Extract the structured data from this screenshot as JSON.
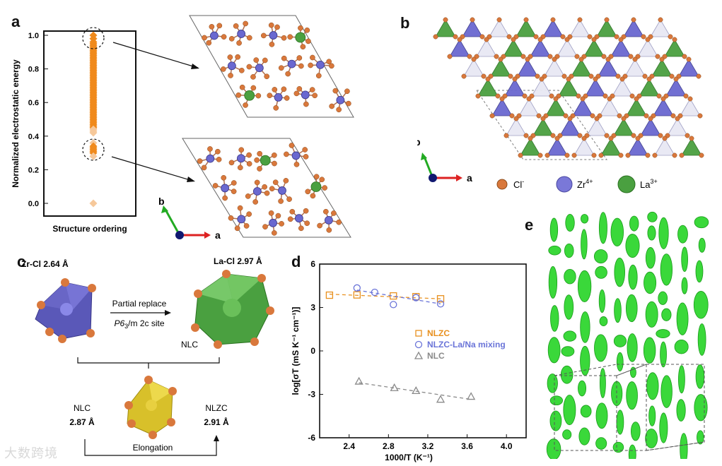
{
  "panels": {
    "a": "a",
    "b": "b",
    "c": "c",
    "d": "d",
    "e": "e"
  },
  "panel_a": {
    "ylabel": "Normalized electrostatic energy",
    "xlabel": "Structure ordering",
    "yticks": [
      "1.0",
      "0.8",
      "0.6",
      "0.4",
      "0.2",
      "0.0"
    ],
    "axis_b": "b",
    "axis_a": "a"
  },
  "panel_b": {
    "axis_b": "b",
    "axis_a": "a",
    "legend": [
      {
        "label": "Cl",
        "sup": "-",
        "color": "#d9783c"
      },
      {
        "label": "Zr",
        "sup": "4+",
        "color": "#7a78d8"
      },
      {
        "label": "La",
        "sup": "3+",
        "color": "#4aa040"
      }
    ]
  },
  "panel_c": {
    "zrcl": "Zr-Cl 2.64 Å",
    "lacl": "La-Cl 2.97 Å",
    "replace_line1": "Partial replace",
    "replace_line2_italic": "P6",
    "replace_line2_sub": "3",
    "replace_line2_rest": "/m 2c site",
    "nlc_tag": "NLC",
    "left_label": "NLC",
    "left_value": "2.87 Å",
    "right_label": "NLZC",
    "right_value": "2.91 Å",
    "bottom": "Elongation"
  },
  "watermark": "大数跨境",
  "chart_data": {
    "type": "scatter",
    "title": "",
    "xlabel": "1000/T (K⁻¹)",
    "ylabel": "log[σT (mS K⁻¹ cm⁻¹)]",
    "xlim": [
      2.1,
      4.2
    ],
    "ylim": [
      -6,
      6
    ],
    "xticks": [
      "2.4",
      "2.8",
      "3.2",
      "3.6",
      "4.0"
    ],
    "yticks": [
      "6",
      "3",
      "0",
      "-3",
      "-6"
    ],
    "legend": [
      "NLZC",
      "NLZC-La/Na mixing",
      "NLC"
    ],
    "series": [
      {
        "name": "NLZC",
        "marker": "square",
        "color": "#e8901e",
        "x": [
          2.2,
          2.48,
          2.85,
          3.08,
          3.33
        ],
        "y": [
          3.85,
          3.87,
          3.8,
          3.75,
          3.6
        ],
        "fit": [
          [
            2.2,
            3.92
          ],
          [
            3.33,
            3.6
          ]
        ]
      },
      {
        "name": "NLZC-La/Na mixing",
        "marker": "circle",
        "color": "#6a74d8",
        "x": [
          2.48,
          2.66,
          2.85,
          3.08,
          3.33
        ],
        "y": [
          4.35,
          4.05,
          3.2,
          3.68,
          3.25
        ],
        "fit": [
          [
            2.48,
            4.2
          ],
          [
            3.33,
            3.25
          ]
        ]
      },
      {
        "name": "NLC",
        "marker": "triangle",
        "color": "#8a8a8a",
        "x": [
          2.5,
          2.86,
          3.08,
          3.33,
          3.64
        ],
        "y": [
          -2.1,
          -2.55,
          -2.75,
          -3.35,
          -3.15
        ],
        "fit": [
          [
            2.5,
            -2.2
          ],
          [
            3.64,
            -3.35
          ]
        ]
      }
    ]
  },
  "energy_data": {
    "points": [
      1.0,
      0.98,
      0.96,
      0.95,
      0.94,
      0.93,
      0.92,
      0.91,
      0.9,
      0.89,
      0.88,
      0.87,
      0.86,
      0.85,
      0.84,
      0.83,
      0.82,
      0.81,
      0.8,
      0.79,
      0.78,
      0.77,
      0.76,
      0.75,
      0.74,
      0.73,
      0.72,
      0.71,
      0.7,
      0.69,
      0.68,
      0.67,
      0.66,
      0.65,
      0.64,
      0.63,
      0.62,
      0.61,
      0.6,
      0.59,
      0.58,
      0.57,
      0.56,
      0.55,
      0.54,
      0.53,
      0.52,
      0.51,
      0.5,
      0.49,
      0.48,
      0.47,
      0.46,
      0.45,
      0.44,
      0.43,
      0.42,
      0.36,
      0.34,
      0.33,
      0.32,
      0.31,
      0.3,
      0.28,
      0.0
    ]
  }
}
